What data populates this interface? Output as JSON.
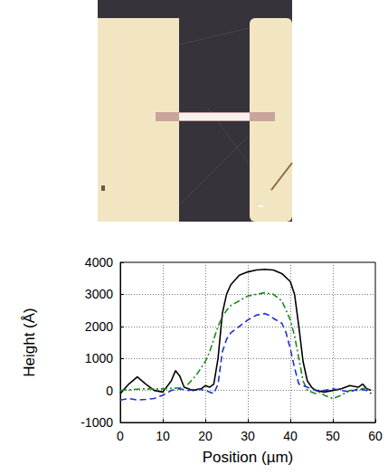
{
  "chart_data": {
    "type": "line",
    "x_label": "Position (µm)",
    "y_label": "Height (Å)",
    "xlim": [
      0,
      60
    ],
    "xticks": [
      0,
      10,
      20,
      30,
      40,
      50,
      60
    ],
    "ylim": [
      -1000,
      4000
    ],
    "yticks": [
      -1000,
      0,
      1000,
      2000,
      3000,
      4000
    ],
    "grid": true,
    "series": [
      {
        "color": "#000000",
        "line_style": "solid",
        "marker": "none",
        "x": [
          0,
          2,
          4,
          6,
          8,
          10,
          12,
          13,
          14,
          15,
          17,
          19,
          20,
          21,
          22,
          23,
          24,
          25,
          26,
          28,
          30,
          32,
          34,
          36,
          38,
          40,
          41,
          42,
          43,
          44,
          45,
          46,
          48,
          50,
          52,
          54,
          56,
          57,
          58,
          59
        ],
        "values": [
          -100,
          200,
          420,
          200,
          0,
          -50,
          300,
          620,
          450,
          100,
          0,
          50,
          150,
          100,
          200,
          1000,
          2400,
          3000,
          3300,
          3600,
          3700,
          3760,
          3780,
          3760,
          3650,
          3400,
          3000,
          2000,
          900,
          300,
          100,
          0,
          -50,
          0,
          50,
          150,
          100,
          200,
          50,
          0
        ]
      },
      {
        "color": "#1a8a1a",
        "line_style": "dashdot",
        "marker": "none",
        "x": [
          0,
          5,
          10,
          14,
          16,
          18,
          20,
          21,
          22,
          23,
          24,
          25,
          26,
          28,
          30,
          32,
          34,
          36,
          38,
          39,
          40,
          41,
          42,
          43,
          44,
          46,
          47,
          48,
          50,
          52,
          54,
          56,
          58,
          59
        ],
        "values": [
          0,
          50,
          50,
          80,
          200,
          500,
          900,
          1200,
          1600,
          2000,
          2300,
          2500,
          2650,
          2800,
          2950,
          3000,
          3050,
          3000,
          2800,
          2500,
          2200,
          1700,
          1000,
          300,
          0,
          -100,
          -50,
          -150,
          -250,
          -150,
          0,
          0,
          100,
          -100
        ]
      },
      {
        "color": "#1f2fd0",
        "line_style": "dashed",
        "marker": "none",
        "x": [
          0,
          2,
          4,
          6,
          8,
          10,
          12,
          14,
          16,
          18,
          20,
          22,
          23,
          24,
          25,
          26,
          28,
          30,
          32,
          34,
          35,
          36,
          38,
          39,
          40,
          41,
          42,
          44,
          46,
          48,
          50,
          52,
          54,
          56,
          58,
          59
        ],
        "values": [
          -300,
          -250,
          -300,
          -280,
          -250,
          -150,
          0,
          50,
          0,
          50,
          0,
          -100,
          200,
          1200,
          1600,
          1800,
          2000,
          2200,
          2350,
          2400,
          2350,
          2250,
          2100,
          1800,
          1300,
          700,
          200,
          100,
          0,
          0,
          50,
          0,
          -50,
          50,
          0,
          -100
        ]
      }
    ]
  }
}
